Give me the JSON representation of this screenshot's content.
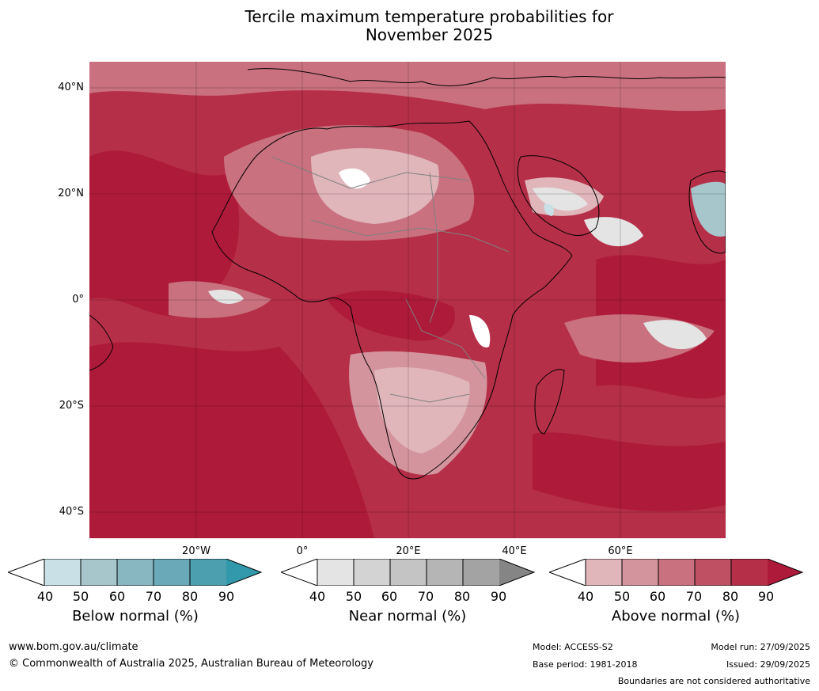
{
  "title": {
    "line1": "Tercile maximum temperature probabilities for",
    "line2": "November 2025"
  },
  "map": {
    "latitude_labels": [
      "40°N",
      "20°N",
      "0°",
      "20°S",
      "40°S"
    ],
    "longitude_labels": [
      "20°W",
      "0°",
      "20°E",
      "40°E",
      "60°E"
    ],
    "colors": {
      "above_40_50": "#e0b6bb",
      "above_50_60": "#d4949e",
      "above_60_70": "#c9717f",
      "above_70_80": "#bf4f62",
      "above_80_90": "#b52f48",
      "above_90": "#ae1a3a",
      "near_40_50": "#e4e4e4",
      "below_40_50": "#c8e0e6",
      "below_50_60": "#a7c6cc",
      "land_outline": "#000000",
      "country_border": "#808080"
    }
  },
  "colorbars": {
    "ticks": [
      "40",
      "50",
      "60",
      "70",
      "80",
      "90"
    ],
    "below": {
      "label": "Below normal (%)",
      "colors": [
        "#c8e0e6",
        "#a7c6cc",
        "#88b6c1",
        "#6aaab8",
        "#4c9fae",
        "#3199ab"
      ]
    },
    "near": {
      "label": "Near normal (%)",
      "colors": [
        "#e4e4e4",
        "#d3d3d3",
        "#c4c4c4",
        "#b5b5b5",
        "#a3a3a3",
        "#858585"
      ]
    },
    "above": {
      "label": "Above normal (%)",
      "colors": [
        "#e0b6bb",
        "#d4949e",
        "#c9717f",
        "#bf4f62",
        "#b52f48",
        "#ae1a3a"
      ]
    }
  },
  "footer": {
    "website": "www.bom.gov.au/climate",
    "copyright": "© Commonwealth of Australia 2025, Australian Bureau of Meteorology",
    "model": "Model: ACCESS-S2",
    "base_period": "Base period: 1981-2018",
    "model_run": "Model run: 27/09/2025",
    "issued": "Issued: 29/09/2025",
    "disclaimer": "Boundaries are not considered authoritative"
  }
}
